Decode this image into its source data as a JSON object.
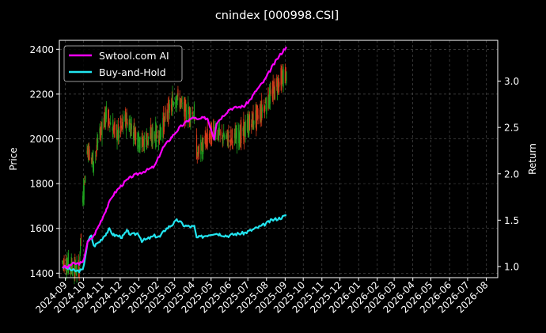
{
  "chart_data": {
    "type": "line",
    "title": "cnindex [000998.CSI]",
    "ylabel_left": "Price",
    "ylabel_right": "Return",
    "x_ticks": [
      "2024-09",
      "2024-10",
      "2024-11",
      "2024-12",
      "2025-01",
      "2025-02",
      "2025-03",
      "2025-04",
      "2025-05",
      "2025-06",
      "2025-07",
      "2025-08",
      "2025-09",
      "2025-10",
      "2025-11",
      "2025-12",
      "2026-01",
      "2026-02",
      "2026-03",
      "2026-04",
      "2026-05",
      "2026-06",
      "2026-07",
      "2026-08"
    ],
    "x_range": [
      "2024-08-22",
      "2026-08-20"
    ],
    "y_left_ticks": [
      1400,
      1600,
      1800,
      2000,
      2200,
      2400
    ],
    "y_left_range": [
      1380,
      2440
    ],
    "y_right_ticks": [
      1.0,
      1.5,
      2.0,
      2.5,
      3.0
    ],
    "y_right_range": [
      0.88,
      3.44
    ],
    "grid": true,
    "legend_position": "top-left",
    "colors": {
      "background": "#000000",
      "ai": "#ff00ff",
      "hold": "#22e5f0",
      "up": "#1fa21f",
      "down": "#d43b1a",
      "grid": "#555555"
    },
    "series": [
      {
        "name": "Swtool.com AI",
        "axis": "right",
        "color": "#ff00ff",
        "points": [
          [
            "2024-08-27",
            1.0
          ],
          [
            "2024-09-05",
            0.99
          ],
          [
            "2024-09-12",
            1.03
          ],
          [
            "2024-09-20",
            1.03
          ],
          [
            "2024-09-30",
            1.04
          ],
          [
            "2024-10-08",
            1.26
          ],
          [
            "2024-10-18",
            1.33
          ],
          [
            "2024-10-28",
            1.46
          ],
          [
            "2024-11-08",
            1.62
          ],
          [
            "2024-11-18",
            1.76
          ],
          [
            "2024-11-28",
            1.84
          ],
          [
            "2024-12-10",
            1.92
          ],
          [
            "2024-12-20",
            1.97
          ],
          [
            "2025-01-03",
            2.01
          ],
          [
            "2025-01-15",
            2.04
          ],
          [
            "2025-01-27",
            2.08
          ],
          [
            "2025-02-10",
            2.28
          ],
          [
            "2025-02-25",
            2.4
          ],
          [
            "2025-03-10",
            2.5
          ],
          [
            "2025-03-25",
            2.58
          ],
          [
            "2025-04-03",
            2.61
          ],
          [
            "2025-04-08",
            2.58
          ],
          [
            "2025-04-16",
            2.6
          ],
          [
            "2025-04-25",
            2.6
          ],
          [
            "2025-05-06",
            2.38
          ],
          [
            "2025-05-10",
            2.55
          ],
          [
            "2025-05-20",
            2.62
          ],
          [
            "2025-06-01",
            2.7
          ],
          [
            "2025-06-15",
            2.72
          ],
          [
            "2025-06-25",
            2.73
          ],
          [
            "2025-07-05",
            2.8
          ],
          [
            "2025-07-15",
            2.9
          ],
          [
            "2025-07-28",
            3.0
          ],
          [
            "2025-08-10",
            3.15
          ],
          [
            "2025-08-20",
            3.25
          ],
          [
            "2025-08-28",
            3.32
          ],
          [
            "2025-09-03",
            3.37
          ]
        ]
      },
      {
        "name": "Buy-and-Hold",
        "axis": "right",
        "color": "#22e5f0",
        "points": [
          [
            "2024-08-27",
            1.0
          ],
          [
            "2024-09-05",
            0.98
          ],
          [
            "2024-09-12",
            0.96
          ],
          [
            "2024-09-20",
            0.95
          ],
          [
            "2024-09-30",
            0.96
          ],
          [
            "2024-10-08",
            1.26
          ],
          [
            "2024-10-14",
            1.34
          ],
          [
            "2024-10-18",
            1.22
          ],
          [
            "2024-10-28",
            1.27
          ],
          [
            "2024-11-08",
            1.36
          ],
          [
            "2024-11-13",
            1.4
          ],
          [
            "2024-11-20",
            1.34
          ],
          [
            "2024-11-28",
            1.33
          ],
          [
            "2024-12-05",
            1.32
          ],
          [
            "2024-12-12",
            1.38
          ],
          [
            "2024-12-20",
            1.34
          ],
          [
            "2024-12-31",
            1.36
          ],
          [
            "2025-01-06",
            1.28
          ],
          [
            "2025-01-13",
            1.29
          ],
          [
            "2025-01-27",
            1.33
          ],
          [
            "2025-02-05",
            1.32
          ],
          [
            "2025-02-14",
            1.4
          ],
          [
            "2025-02-25",
            1.45
          ],
          [
            "2025-03-06",
            1.5
          ],
          [
            "2025-03-18",
            1.44
          ],
          [
            "2025-03-28",
            1.43
          ],
          [
            "2025-04-03",
            1.43
          ],
          [
            "2025-04-07",
            1.31
          ],
          [
            "2025-04-15",
            1.32
          ],
          [
            "2025-04-25",
            1.34
          ],
          [
            "2025-05-06",
            1.36
          ],
          [
            "2025-05-15",
            1.35
          ],
          [
            "2025-05-28",
            1.33
          ],
          [
            "2025-06-10",
            1.35
          ],
          [
            "2025-06-25",
            1.36
          ],
          [
            "2025-07-10",
            1.4
          ],
          [
            "2025-07-25",
            1.44
          ],
          [
            "2025-08-10",
            1.5
          ],
          [
            "2025-08-22",
            1.52
          ],
          [
            "2025-09-03",
            1.55
          ]
        ]
      },
      {
        "name": "Price",
        "axis": "left",
        "type": "candlestick",
        "points": [
          [
            "2024-08-27",
            1450
          ],
          [
            "2024-09-12",
            1430
          ],
          [
            "2024-09-24",
            1410
          ],
          [
            "2024-09-30",
            1720
          ],
          [
            "2024-10-08",
            1960
          ],
          [
            "2024-10-18",
            1890
          ],
          [
            "2024-10-28",
            2020
          ],
          [
            "2024-11-08",
            2110
          ],
          [
            "2024-11-18",
            2050
          ],
          [
            "2024-11-28",
            2020
          ],
          [
            "2024-12-10",
            2090
          ],
          [
            "2024-12-20",
            2050
          ],
          [
            "2025-01-06",
            1980
          ],
          [
            "2025-01-20",
            2010
          ],
          [
            "2025-02-05",
            2020
          ],
          [
            "2025-02-18",
            2120
          ],
          [
            "2025-03-06",
            2190
          ],
          [
            "2025-03-20",
            2120
          ],
          [
            "2025-04-03",
            2110
          ],
          [
            "2025-04-08",
            1930
          ],
          [
            "2025-04-20",
            1980
          ],
          [
            "2025-05-06",
            2040
          ],
          [
            "2025-05-20",
            2010
          ],
          [
            "2025-06-05",
            2000
          ],
          [
            "2025-06-20",
            2020
          ],
          [
            "2025-07-05",
            2070
          ],
          [
            "2025-07-20",
            2110
          ],
          [
            "2025-08-05",
            2180
          ],
          [
            "2025-08-20",
            2250
          ],
          [
            "2025-09-03",
            2290
          ]
        ]
      }
    ]
  }
}
